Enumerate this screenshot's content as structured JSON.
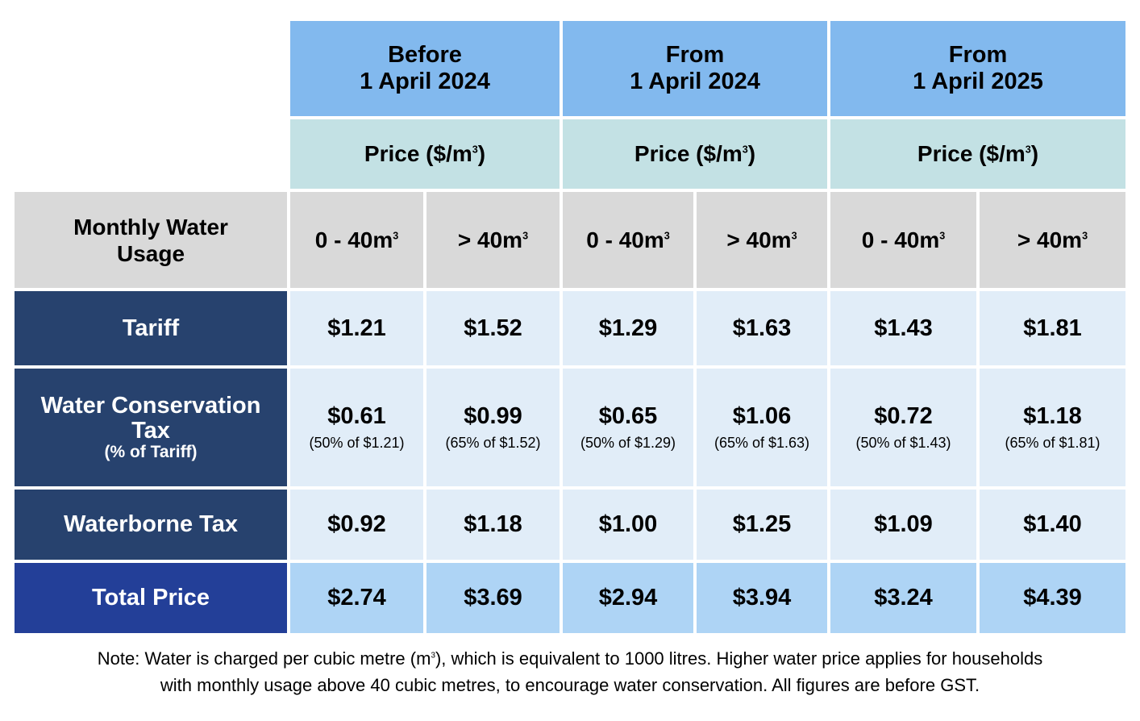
{
  "periods": [
    {
      "line1": "Before",
      "line2": "1 April 2024"
    },
    {
      "line1": "From",
      "line2": "1 April 2024"
    },
    {
      "line1": "From",
      "line2": "1 April 2025"
    }
  ],
  "price_header": {
    "text": "Price ($/m",
    "sup": "3",
    "close": ")"
  },
  "usage_header": {
    "line1": "Monthly Water",
    "line2": "Usage"
  },
  "tiers": [
    {
      "text": "0 - 40m",
      "sup": "3"
    },
    {
      "text": "> 40m",
      "sup": "3"
    }
  ],
  "rows": [
    {
      "label": "Tariff",
      "values": [
        "$1.21",
        "$1.52",
        "$1.29",
        "$1.63",
        "$1.43",
        "$1.81"
      ]
    },
    {
      "label": "Water Conservation",
      "label_line2": "Tax",
      "label_sub": "(% of Tariff)",
      "values": [
        "$0.61",
        "$0.99",
        "$0.65",
        "$1.06",
        "$0.72",
        "$1.18"
      ],
      "subs": [
        "(50% of $1.21)",
        "(65% of $1.52)",
        "(50% of $1.29)",
        "(65% of $1.63)",
        "(50% of $1.43)",
        "(65% of $1.81)"
      ]
    },
    {
      "label": "Waterborne Tax",
      "values": [
        "$0.92",
        "$1.18",
        "$1.00",
        "$1.25",
        "$1.09",
        "$1.40"
      ]
    },
    {
      "label": "Total Price",
      "values": [
        "$2.74",
        "$3.69",
        "$2.94",
        "$3.94",
        "$3.24",
        "$4.39"
      ]
    }
  ],
  "note": {
    "part1": "Note: Water is charged per cubic metre (m",
    "sup": "3",
    "part2": "), which is equivalent to 1000 litres. Higher water price applies for households",
    "line2": "with monthly usage above 40 cubic metres, to encourage water conservation. All figures are before GST."
  },
  "colors": {
    "period_header": "#82b9ee",
    "price_header": "#c3e1e4",
    "usage_header": "#d9d9d9",
    "row_label": "#27426e",
    "total_label": "#233f98",
    "value_cell": "#e1edf8",
    "total_value_cell": "#aed4f5"
  }
}
